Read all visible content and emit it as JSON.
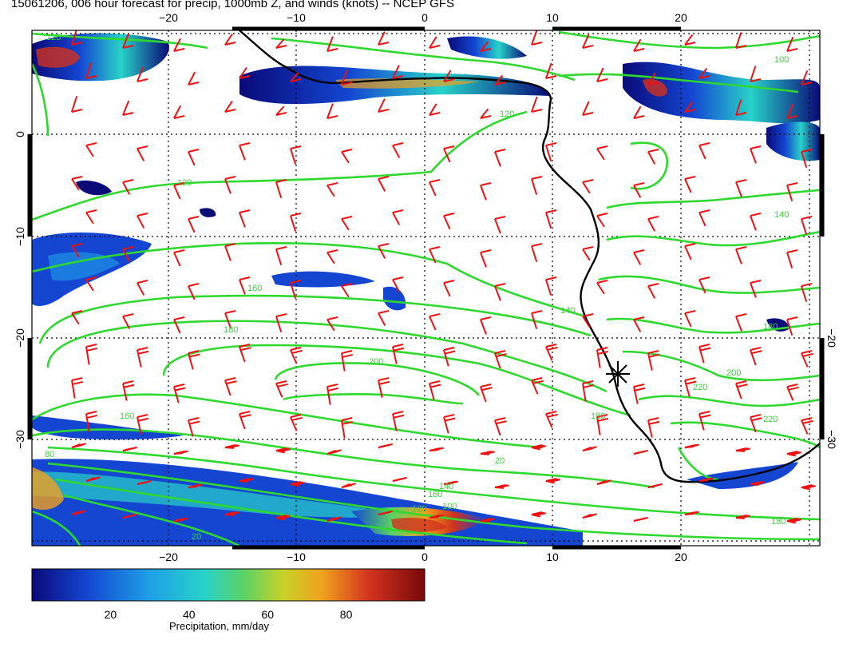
{
  "title": "15061206, 006 hour forecast for precip, 1000mb Z, and winds (knots) -- NCEP GFS",
  "axes": {
    "top_lon_labels": [
      "−20",
      "−10",
      "0",
      "10",
      "20"
    ],
    "bottom_lon_labels": [
      "−20",
      "−10",
      "0",
      "10",
      "20"
    ],
    "left_lat_labels": [
      "0",
      "−10",
      "−20",
      "−30"
    ],
    "right_lat_labels": [
      "−20",
      "−30"
    ],
    "lon_range": [
      -31,
      31
    ],
    "lat_range": [
      -40,
      10
    ]
  },
  "contour_labels": [
    "120",
    "120",
    "120",
    "100",
    "140",
    "140",
    "160",
    "160",
    "180",
    "180",
    "180",
    "200",
    "200",
    "220",
    "220",
    "160",
    "140",
    "120",
    "100",
    "80",
    "20",
    "20",
    "180"
  ],
  "colorbar": {
    "ticks": [
      "20",
      "40",
      "60",
      "80"
    ],
    "tick_values": [
      20,
      40,
      60,
      80
    ],
    "range": [
      0,
      100
    ],
    "label": "Precipitation, mm/day",
    "colors": [
      "#0a0a78",
      "#1446d2",
      "#1ea0e6",
      "#28d2c8",
      "#5ad264",
      "#c8d228",
      "#f0a01e",
      "#d2321e",
      "#780a0a"
    ]
  },
  "colors": {
    "contour": "#2ed82e",
    "wind_barb": "#ee1111",
    "coastline": "#000000"
  },
  "marker_icon": "star-marker-icon"
}
